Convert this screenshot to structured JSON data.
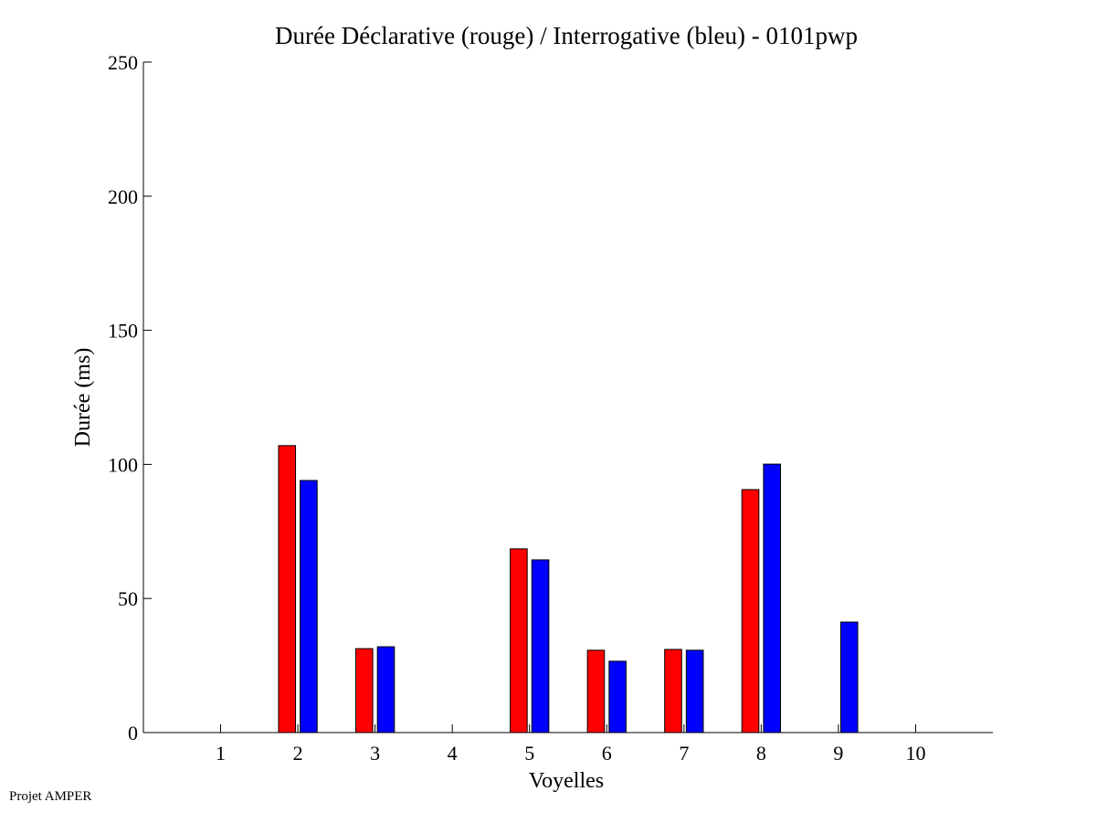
{
  "chart_data": {
    "type": "bar",
    "title": "Durée Déclarative (rouge) / Interrogative (bleu) - 0101pwp",
    "xlabel": "Voyelles",
    "ylabel": "Durée (ms)",
    "xlim": [
      0,
      11
    ],
    "ylim": [
      0,
      250
    ],
    "yticks": [
      0,
      50,
      100,
      150,
      200,
      250
    ],
    "categories": [
      "1",
      "2",
      "3",
      "4",
      "5",
      "6",
      "7",
      "8",
      "9",
      "10"
    ],
    "grid": false,
    "series": [
      {
        "name": "Déclarative",
        "color": "#ff0000",
        "values": [
          0,
          107,
          31.3,
          0,
          68.5,
          30.7,
          31,
          90.6,
          0,
          0
        ]
      },
      {
        "name": "Interrogative",
        "color": "#0000ff",
        "values": [
          0,
          94,
          32,
          0,
          64.4,
          26.6,
          30.7,
          100.1,
          41.2,
          0
        ]
      }
    ]
  },
  "footer": "Projet AMPER"
}
